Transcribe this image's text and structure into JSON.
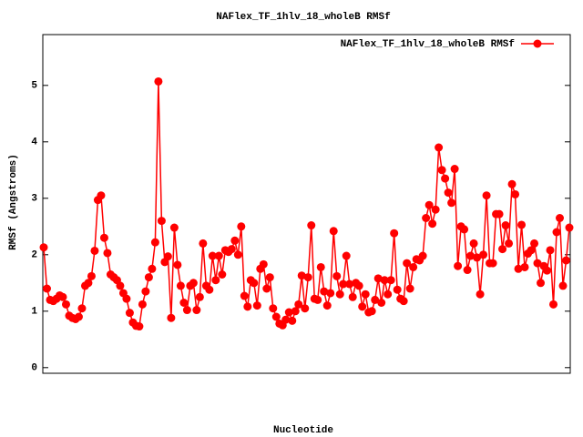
{
  "chart_data": {
    "type": "line",
    "title": "NAFlex_TF_1hlv_18_wholeB RMSf",
    "xlabel": "Nucleotide",
    "ylabel": "RMSf (Angstroms)",
    "ylim": [
      -0.1,
      5.9
    ],
    "yticks": [
      0,
      1,
      2,
      3,
      4,
      5
    ],
    "legend_position": "upper right",
    "series": [
      {
        "name": "NAFlex_TF_1hlv_18_wholeB RMSf",
        "color": "#ff0000",
        "values": [
          2.13,
          1.4,
          1.2,
          1.18,
          1.22,
          1.28,
          1.25,
          1.12,
          0.92,
          0.88,
          0.86,
          0.9,
          1.05,
          1.45,
          1.5,
          1.62,
          2.07,
          2.97,
          3.05,
          2.3,
          2.03,
          1.65,
          1.6,
          1.55,
          1.45,
          1.32,
          1.22,
          0.97,
          0.8,
          0.74,
          0.73,
          1.12,
          1.35,
          1.6,
          1.75,
          2.22,
          5.07,
          2.6,
          1.87,
          1.97,
          0.88,
          2.48,
          1.82,
          1.45,
          1.15,
          1.02,
          1.45,
          1.5,
          1.02,
          1.25,
          2.2,
          1.45,
          1.38,
          1.98,
          1.55,
          1.98,
          1.65,
          2.08,
          2.05,
          2.1,
          2.25,
          2.0,
          2.5,
          1.27,
          1.08,
          1.55,
          1.5,
          1.1,
          1.75,
          1.83,
          1.4,
          1.6,
          1.05,
          0.9,
          0.78,
          0.75,
          0.85,
          0.98,
          0.83,
          1.0,
          1.12,
          1.63,
          1.05,
          1.6,
          2.52,
          1.22,
          1.2,
          1.78,
          1.35,
          1.1,
          1.32,
          2.42,
          1.62,
          1.3,
          1.48,
          1.98,
          1.48,
          1.25,
          1.5,
          1.45,
          1.08,
          1.3,
          0.98,
          1.0,
          1.2,
          1.58,
          1.15,
          1.55,
          1.3,
          1.55,
          2.38,
          1.38,
          1.22,
          1.18,
          1.85,
          1.4,
          1.78,
          1.92,
          1.9,
          1.98,
          2.65,
          2.88,
          2.55,
          2.8,
          3.9,
          3.5,
          3.35,
          3.1,
          2.92,
          3.52,
          1.8,
          2.5,
          2.45,
          1.73,
          1.98,
          2.2,
          1.95,
          1.3,
          2.0,
          3.05,
          1.85,
          1.85,
          2.72,
          2.72,
          2.1,
          2.52,
          2.2,
          3.25,
          3.07,
          1.75,
          2.53,
          1.78,
          2.02,
          2.08,
          2.2,
          1.85,
          1.5,
          1.8,
          1.72,
          2.08,
          1.12,
          2.4,
          2.65,
          1.45,
          1.9,
          2.48
        ]
      }
    ]
  }
}
